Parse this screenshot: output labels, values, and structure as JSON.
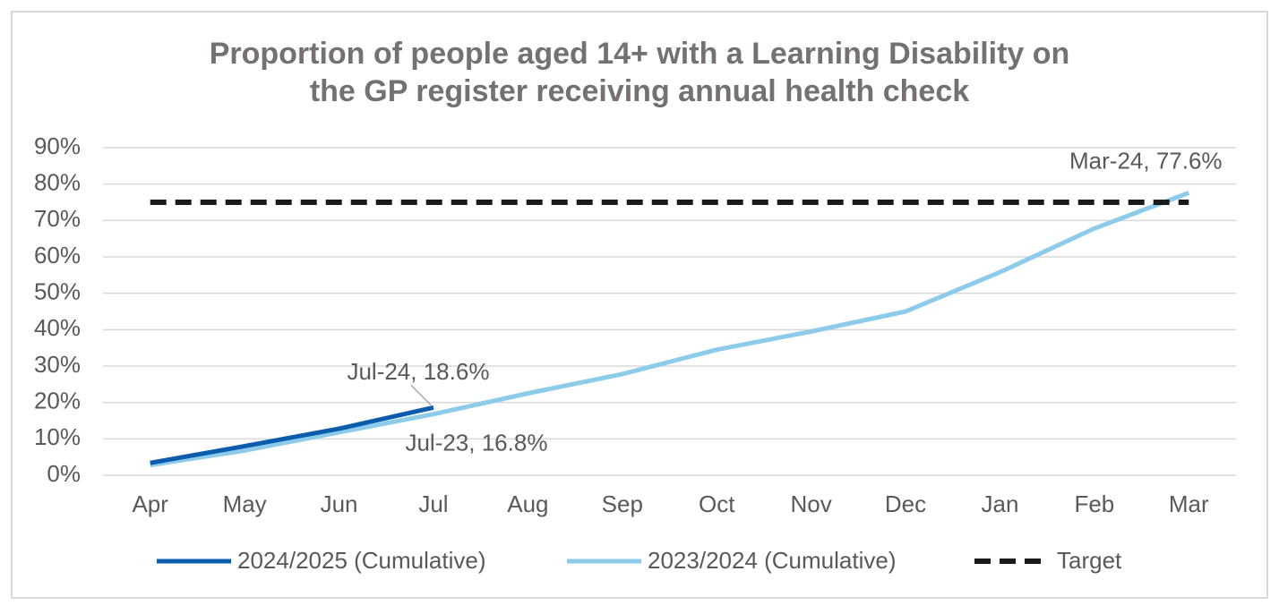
{
  "chart_data": {
    "type": "line",
    "title": [
      "Proportion of people aged 14+ with a Learning Disability on",
      "the GP register receiving annual health check"
    ],
    "categories": [
      "Apr",
      "May",
      "Jun",
      "Jul",
      "Aug",
      "Sep",
      "Oct",
      "Nov",
      "Dec",
      "Jan",
      "Feb",
      "Mar"
    ],
    "series": [
      {
        "name": "2024/2025 (Cumulative)",
        "color": "#0b5cad",
        "values": [
          3.4,
          8,
          12.8,
          18.6,
          null,
          null,
          null,
          null,
          null,
          null,
          null,
          null
        ],
        "value_labels": [
          null,
          null,
          null,
          "Jul-24, 18.6%",
          null,
          null,
          null,
          null,
          null,
          null,
          null,
          null
        ]
      },
      {
        "name": "2023/2024 (Cumulative)",
        "color": "#8ccbea",
        "values": [
          2.8,
          6.8,
          11.8,
          16.8,
          22.5,
          27.8,
          34.5,
          39.5,
          45,
          55.8,
          67.8,
          77.6
        ],
        "value_labels": [
          null,
          null,
          null,
          "Jul-23, 16.8%",
          null,
          null,
          null,
          null,
          null,
          null,
          null,
          "Mar-24, 77.6%"
        ]
      },
      {
        "name": "Target",
        "color": "#1a1a1a",
        "dashed": true,
        "values": [
          75,
          75,
          75,
          75,
          75,
          75,
          75,
          75,
          75,
          75,
          75,
          75
        ]
      }
    ],
    "ylim": [
      0,
      90
    ],
    "yticks": [
      {
        "value": 0,
        "label": "0%"
      },
      {
        "value": 10,
        "label": "10%"
      },
      {
        "value": 20,
        "label": "20%"
      },
      {
        "value": 30,
        "label": "30%"
      },
      {
        "value": 40,
        "label": "40%"
      },
      {
        "value": 50,
        "label": "50%"
      },
      {
        "value": 60,
        "label": "60%"
      },
      {
        "value": 70,
        "label": "70%"
      },
      {
        "value": 80,
        "label": "80%"
      },
      {
        "value": 90,
        "label": "90%"
      }
    ],
    "grid": true,
    "legend": "bottom"
  }
}
